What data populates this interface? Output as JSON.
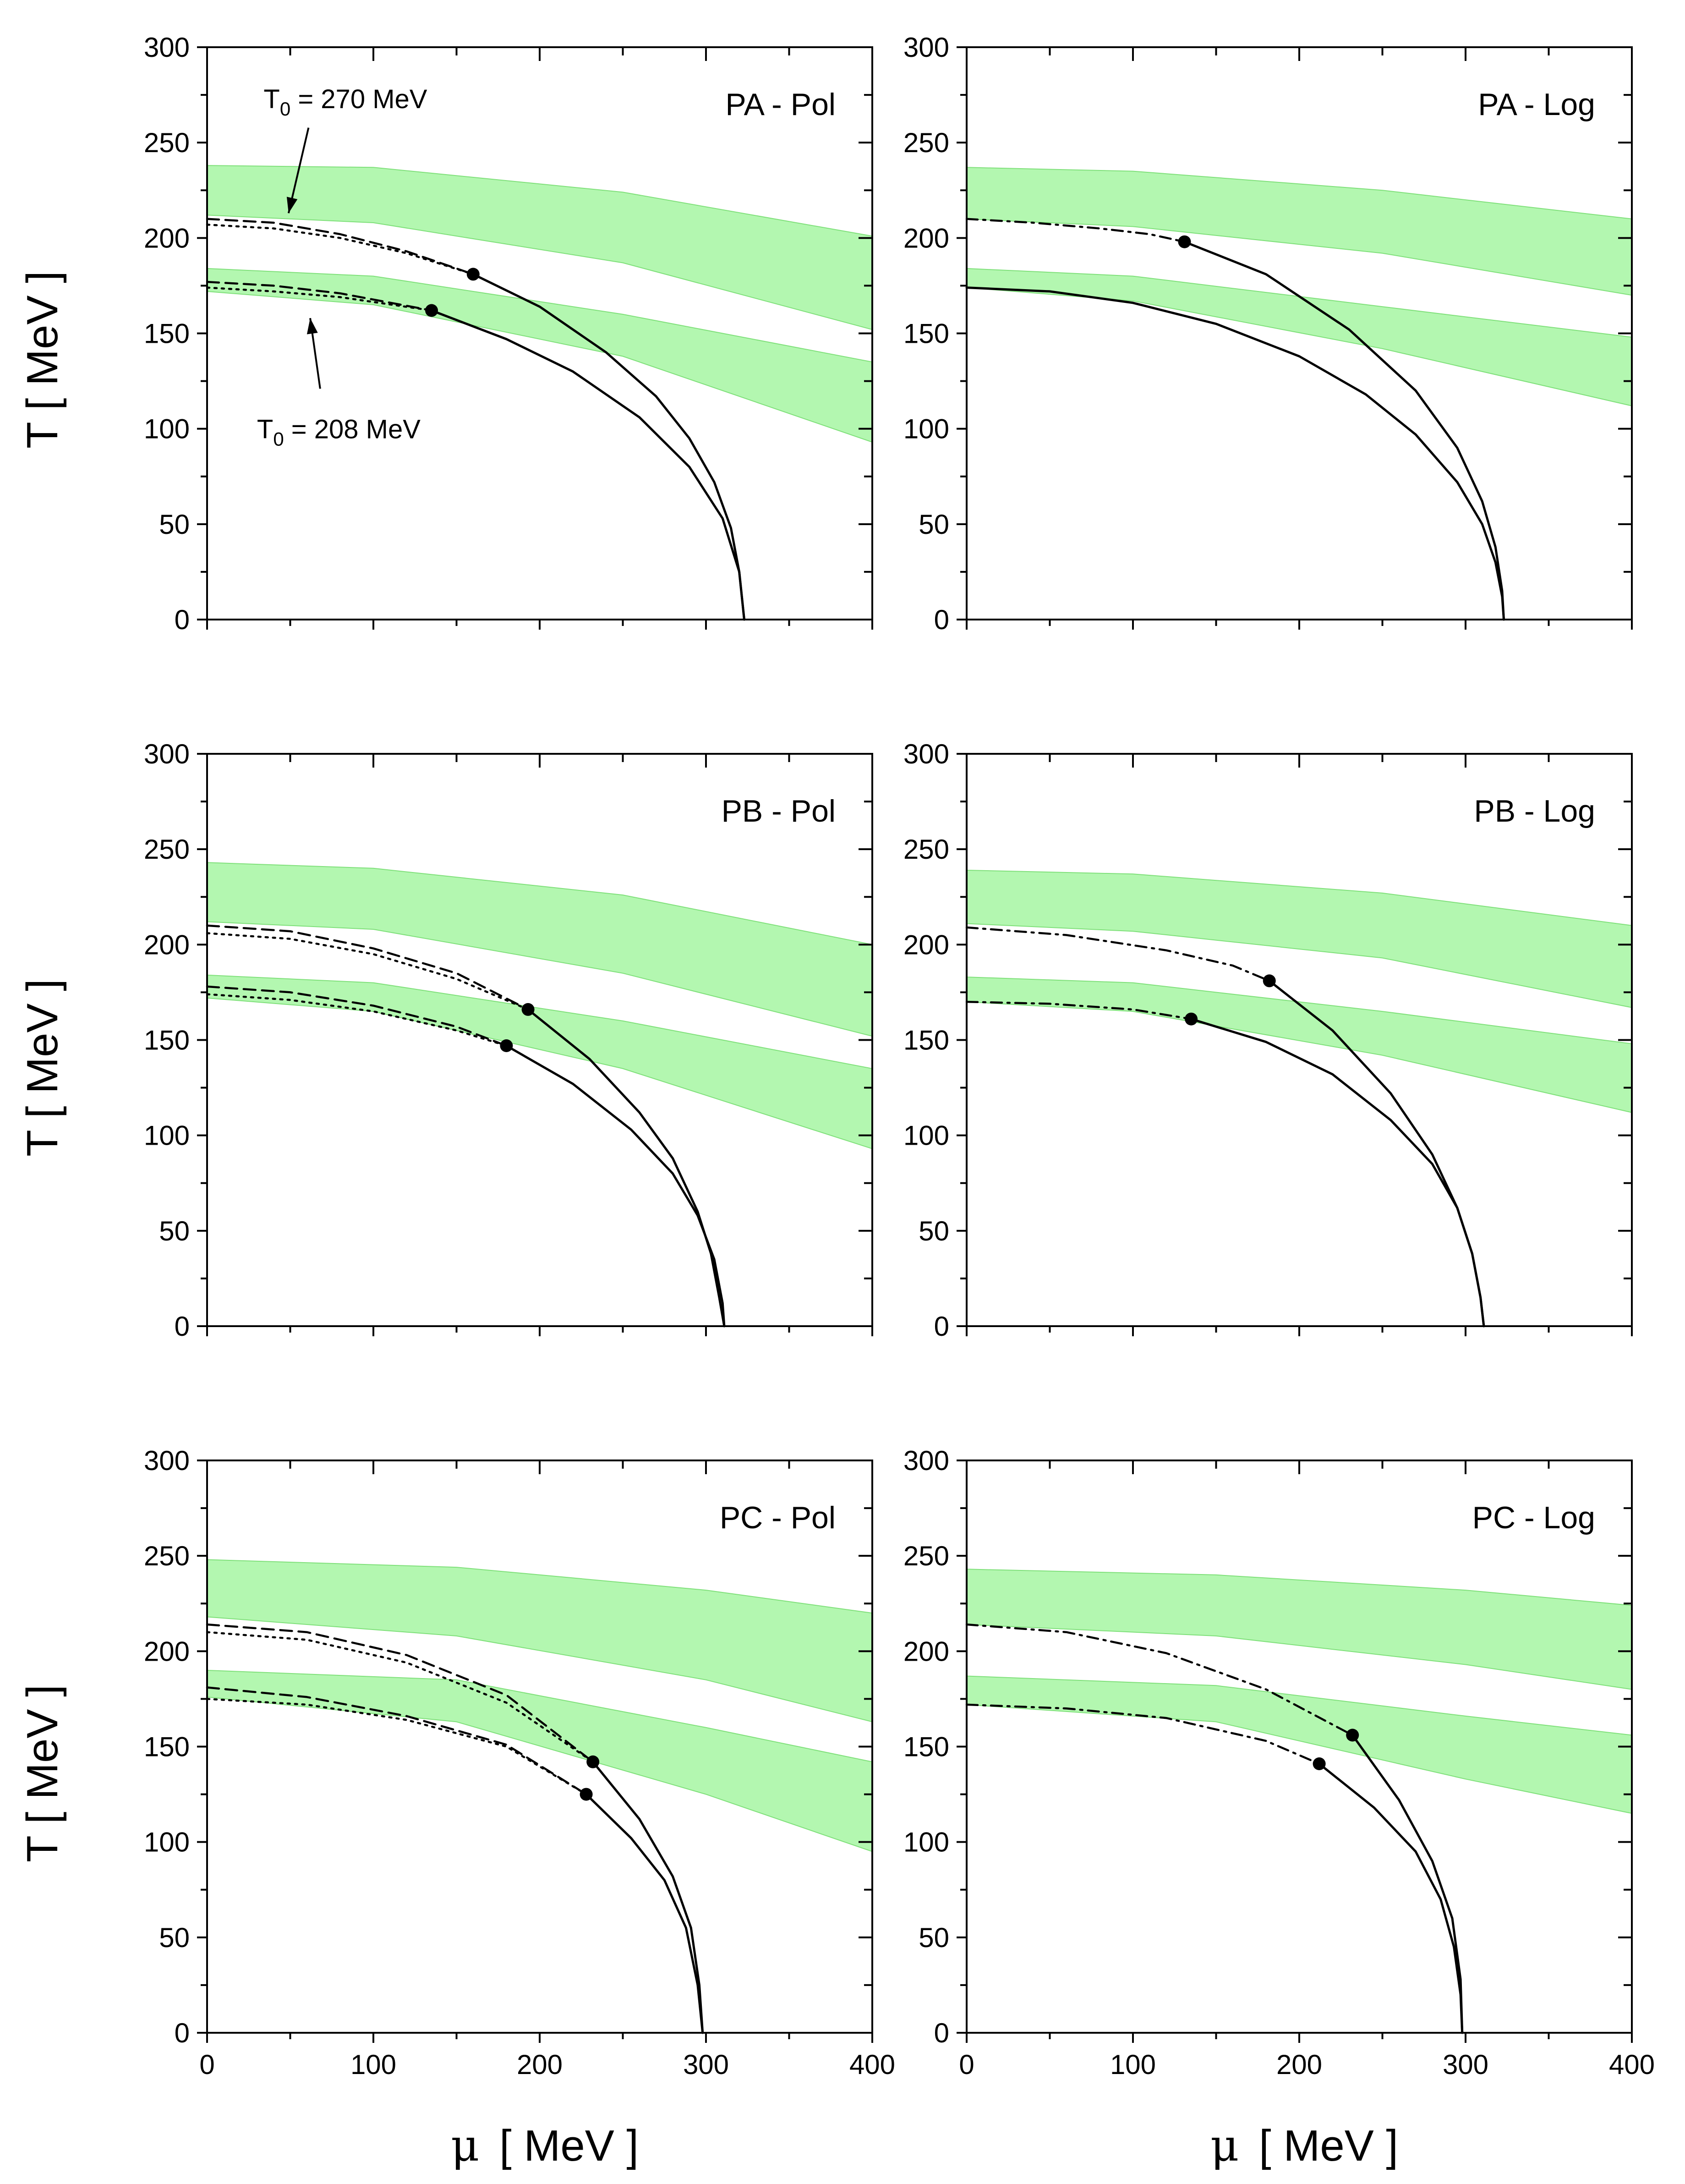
{
  "figure": {
    "y_axis_title": "T  [ MeV ]",
    "x_axis_title_symbol": "μ",
    "x_axis_title_unit": "[ MeV ]"
  },
  "chart_data": [
    {
      "type": "line",
      "title": "PA - Pol",
      "xlabel": "μ  [ MeV ]",
      "ylabel": "T  [ MeV ]",
      "xlim": [
        0,
        400
      ],
      "ylim": [
        0,
        300
      ],
      "x_ticks": [
        0,
        100,
        200,
        300,
        400
      ],
      "y_ticks": [
        0,
        50,
        100,
        150,
        200,
        250,
        300
      ],
      "bands": [
        {
          "name": "upper band",
          "color": "#b3f7b0",
          "x": [
            0,
            100,
            250,
            400
          ],
          "lower": [
            212,
            208,
            187,
            152
          ],
          "upper": [
            238,
            237,
            224,
            201
          ]
        },
        {
          "name": "lower band",
          "color": "#b3f7b0",
          "x": [
            0,
            100,
            250,
            400
          ],
          "lower": [
            172,
            165,
            138,
            93
          ],
          "upper": [
            184,
            180,
            160,
            135
          ]
        }
      ],
      "series": [
        {
          "name": "T0 = 270 MeV dotted",
          "style": "dotted",
          "x": [
            0,
            40,
            80,
            120,
            160
          ],
          "y": [
            207,
            205,
            200,
            192,
            181
          ]
        },
        {
          "name": "T0 = 270 MeV dashed",
          "style": "dashed",
          "x": [
            0,
            40,
            80,
            120,
            160
          ],
          "y": [
            210,
            208,
            202,
            193,
            181
          ]
        },
        {
          "name": "T0 = 270 MeV first-order",
          "style": "solid",
          "x": [
            160,
            200,
            240,
            270,
            290,
            305,
            315,
            320,
            323
          ],
          "y": [
            181,
            164,
            140,
            117,
            95,
            72,
            48,
            25,
            0
          ]
        },
        {
          "name": "T0 = 208 MeV dotted",
          "style": "dotted",
          "x": [
            0,
            40,
            80,
            135
          ],
          "y": [
            174,
            172,
            169,
            162
          ]
        },
        {
          "name": "T0 = 208 MeV dashed",
          "style": "dashed",
          "x": [
            0,
            40,
            80,
            135
          ],
          "y": [
            177,
            175,
            171,
            162
          ]
        },
        {
          "name": "T0 = 208 MeV first-order",
          "style": "solid",
          "x": [
            135,
            180,
            220,
            260,
            290,
            310,
            320,
            323
          ],
          "y": [
            162,
            147,
            130,
            106,
            80,
            53,
            25,
            0
          ]
        }
      ],
      "points": [
        {
          "x": 160,
          "y": 181
        },
        {
          "x": 135,
          "y": 162
        }
      ],
      "annotations": [
        {
          "base": "T",
          "sub": "0",
          "rest": " = 270 MeV"
        },
        {
          "base": "T",
          "sub": "0",
          "rest": " = 208 MeV"
        }
      ]
    },
    {
      "type": "line",
      "title": "PA - Log",
      "xlabel": "μ  [ MeV ]",
      "ylabel": "T  [ MeV ]",
      "xlim": [
        0,
        400
      ],
      "ylim": [
        0,
        300
      ],
      "x_ticks": [
        0,
        100,
        200,
        300,
        400
      ],
      "y_ticks": [
        0,
        50,
        100,
        150,
        200,
        250,
        300
      ],
      "bands": [
        {
          "name": "upper band",
          "color": "#b3f7b0",
          "x": [
            0,
            100,
            250,
            400
          ],
          "lower": [
            210,
            206,
            192,
            170
          ],
          "upper": [
            237,
            235,
            225,
            210
          ]
        },
        {
          "name": "lower band",
          "color": "#b3f7b0",
          "x": [
            0,
            100,
            250,
            400
          ],
          "lower": [
            174,
            167,
            142,
            112
          ],
          "upper": [
            184,
            180,
            164,
            148
          ]
        }
      ],
      "series": [
        {
          "name": "T0 = 270 MeV dash-dot",
          "style": "dashdot",
          "x": [
            0,
            40,
            80,
            110,
            131
          ],
          "y": [
            210,
            208,
            205,
            202,
            198
          ]
        },
        {
          "name": "T0 = 270 MeV first-order",
          "style": "solid",
          "x": [
            131,
            180,
            230,
            270,
            295,
            310,
            318,
            322,
            323
          ],
          "y": [
            198,
            181,
            152,
            120,
            90,
            62,
            38,
            15,
            0
          ]
        },
        {
          "name": "T0 = 208 MeV crossover",
          "style": "solid",
          "x": [
            0,
            50,
            100,
            150,
            200,
            240,
            270,
            295,
            310,
            318,
            322,
            323
          ],
          "y": [
            174,
            172,
            166,
            155,
            138,
            118,
            97,
            72,
            50,
            30,
            12,
            0
          ]
        }
      ],
      "points": [
        {
          "x": 131,
          "y": 198
        }
      ],
      "annotations": []
    },
    {
      "type": "line",
      "title": "PB - Pol",
      "xlabel": "μ  [ MeV ]",
      "ylabel": "T  [ MeV ]",
      "xlim": [
        0,
        400
      ],
      "ylim": [
        0,
        300
      ],
      "x_ticks": [
        0,
        100,
        200,
        300,
        400
      ],
      "y_ticks": [
        0,
        50,
        100,
        150,
        200,
        250,
        300
      ],
      "bands": [
        {
          "name": "upper band",
          "color": "#b3f7b0",
          "x": [
            0,
            100,
            250,
            400
          ],
          "lower": [
            212,
            208,
            185,
            152
          ],
          "upper": [
            243,
            240,
            226,
            200
          ]
        },
        {
          "name": "lower band",
          "color": "#b3f7b0",
          "x": [
            0,
            100,
            250,
            400
          ],
          "lower": [
            172,
            165,
            135,
            93
          ],
          "upper": [
            184,
            180,
            160,
            135
          ]
        }
      ],
      "series": [
        {
          "name": "T0 = 270 MeV dotted",
          "style": "dotted",
          "x": [
            0,
            50,
            100,
            150,
            193
          ],
          "y": [
            206,
            203,
            195,
            182,
            166
          ]
        },
        {
          "name": "T0 = 270 MeV dashed",
          "style": "dashed",
          "x": [
            0,
            50,
            100,
            150,
            193
          ],
          "y": [
            210,
            207,
            198,
            185,
            166
          ]
        },
        {
          "name": "T0 = 270 MeV first-order",
          "style": "solid",
          "x": [
            193,
            230,
            260,
            280,
            295,
            303,
            308,
            311
          ],
          "y": [
            166,
            140,
            112,
            88,
            60,
            38,
            15,
            0
          ]
        },
        {
          "name": "T0 = 208 MeV dotted",
          "style": "dotted",
          "x": [
            0,
            50,
            100,
            150,
            180
          ],
          "y": [
            174,
            171,
            165,
            155,
            147
          ]
        },
        {
          "name": "T0 = 208 MeV dashed",
          "style": "dashed",
          "x": [
            0,
            50,
            100,
            150,
            180
          ],
          "y": [
            178,
            175,
            168,
            157,
            147
          ]
        },
        {
          "name": "T0 = 208 MeV first-order",
          "style": "solid",
          "x": [
            180,
            220,
            255,
            280,
            295,
            305,
            310,
            311
          ],
          "y": [
            147,
            127,
            103,
            80,
            58,
            35,
            12,
            0
          ]
        }
      ],
      "points": [
        {
          "x": 193,
          "y": 166
        },
        {
          "x": 180,
          "y": 147
        }
      ],
      "annotations": []
    },
    {
      "type": "line",
      "title": "PB - Log",
      "xlabel": "μ  [ MeV ]",
      "ylabel": "T  [ MeV ]",
      "xlim": [
        0,
        400
      ],
      "ylim": [
        0,
        300
      ],
      "x_ticks": [
        0,
        100,
        200,
        300,
        400
      ],
      "y_ticks": [
        0,
        50,
        100,
        150,
        200,
        250,
        300
      ],
      "bands": [
        {
          "name": "upper band",
          "color": "#b3f7b0",
          "x": [
            0,
            100,
            250,
            400
          ],
          "lower": [
            211,
            207,
            193,
            167
          ],
          "upper": [
            239,
            237,
            227,
            210
          ]
        },
        {
          "name": "lower band",
          "color": "#b3f7b0",
          "x": [
            0,
            100,
            250,
            400
          ],
          "lower": [
            170,
            165,
            142,
            112
          ],
          "upper": [
            183,
            180,
            165,
            148
          ]
        }
      ],
      "series": [
        {
          "name": "T0 = 270 MeV dash-dot",
          "style": "dashdot",
          "x": [
            0,
            60,
            120,
            160,
            182
          ],
          "y": [
            209,
            205,
            197,
            189,
            181
          ]
        },
        {
          "name": "T0 = 270 MeV first-order",
          "style": "solid",
          "x": [
            182,
            220,
            255,
            280,
            295,
            304,
            309,
            311
          ],
          "y": [
            181,
            155,
            122,
            90,
            62,
            38,
            15,
            0
          ]
        },
        {
          "name": "T0 = 208 MeV dash-dot",
          "style": "dashdot",
          "x": [
            0,
            50,
            100,
            135
          ],
          "y": [
            170,
            169,
            166,
            161
          ]
        },
        {
          "name": "T0 = 208 MeV first-order",
          "style": "solid",
          "x": [
            135,
            180,
            220,
            255,
            280,
            295,
            304,
            309,
            311
          ],
          "y": [
            161,
            149,
            132,
            108,
            85,
            62,
            38,
            15,
            0
          ]
        }
      ],
      "points": [
        {
          "x": 182,
          "y": 181
        },
        {
          "x": 135,
          "y": 161
        }
      ],
      "annotations": []
    },
    {
      "type": "line",
      "title": "PC - Pol",
      "xlabel": "μ  [ MeV ]",
      "ylabel": "T  [ MeV ]",
      "xlim": [
        0,
        400
      ],
      "ylim": [
        0,
        300
      ],
      "x_ticks": [
        0,
        100,
        200,
        300,
        400
      ],
      "y_ticks": [
        0,
        50,
        100,
        150,
        200,
        250,
        300
      ],
      "bands": [
        {
          "name": "upper band",
          "color": "#b3f7b0",
          "x": [
            0,
            150,
            300,
            400
          ],
          "lower": [
            218,
            208,
            185,
            163
          ],
          "upper": [
            248,
            244,
            232,
            220
          ]
        },
        {
          "name": "lower band",
          "color": "#b3f7b0",
          "x": [
            0,
            150,
            300,
            400
          ],
          "lower": [
            176,
            163,
            125,
            95
          ],
          "upper": [
            190,
            185,
            160,
            142
          ]
        }
      ],
      "series": [
        {
          "name": "T0 = 270 MeV dotted",
          "style": "dotted",
          "x": [
            0,
            60,
            120,
            180,
            232
          ],
          "y": [
            210,
            206,
            194,
            173,
            142
          ]
        },
        {
          "name": "T0 = 270 MeV dashed",
          "style": "dashed",
          "x": [
            0,
            60,
            120,
            180,
            232
          ],
          "y": [
            214,
            210,
            198,
            177,
            142
          ]
        },
        {
          "name": "T0 = 270 MeV first-order",
          "style": "solid",
          "x": [
            232,
            260,
            280,
            291,
            296,
            298
          ],
          "y": [
            142,
            112,
            82,
            55,
            25,
            0
          ]
        },
        {
          "name": "T0 = 208 MeV dotted",
          "style": "dotted",
          "x": [
            0,
            60,
            120,
            180,
            228
          ],
          "y": [
            175,
            172,
            164,
            150,
            125
          ]
        },
        {
          "name": "T0 = 208 MeV dashed",
          "style": "dashed",
          "x": [
            0,
            60,
            120,
            180,
            228
          ],
          "y": [
            181,
            176,
            166,
            151,
            125
          ]
        },
        {
          "name": "T0 = 208 MeV first-order",
          "style": "solid",
          "x": [
            228,
            255,
            275,
            288,
            295,
            298
          ],
          "y": [
            125,
            102,
            80,
            55,
            25,
            0
          ]
        }
      ],
      "points": [
        {
          "x": 232,
          "y": 142
        },
        {
          "x": 228,
          "y": 125
        }
      ],
      "annotations": []
    },
    {
      "type": "line",
      "title": "PC - Log",
      "xlabel": "μ  [ MeV ]",
      "ylabel": "T  [ MeV ]",
      "xlim": [
        0,
        400
      ],
      "ylim": [
        0,
        300
      ],
      "x_ticks": [
        0,
        100,
        200,
        300,
        400
      ],
      "y_ticks": [
        0,
        50,
        100,
        150,
        200,
        250,
        300
      ],
      "bands": [
        {
          "name": "upper band",
          "color": "#b3f7b0",
          "x": [
            0,
            150,
            300,
            400
          ],
          "lower": [
            214,
            208,
            193,
            180
          ],
          "upper": [
            243,
            240,
            232,
            224
          ]
        },
        {
          "name": "lower band",
          "color": "#b3f7b0",
          "x": [
            0,
            150,
            300,
            400
          ],
          "lower": [
            172,
            163,
            133,
            115
          ],
          "upper": [
            187,
            182,
            166,
            156
          ]
        }
      ],
      "series": [
        {
          "name": "T0 = 270 MeV dash-dot",
          "style": "dashdot",
          "x": [
            0,
            60,
            120,
            180,
            232
          ],
          "y": [
            214,
            210,
            199,
            180,
            156
          ]
        },
        {
          "name": "T0 = 270 MeV first-order",
          "style": "solid",
          "x": [
            232,
            260,
            280,
            292,
            297,
            298
          ],
          "y": [
            156,
            122,
            90,
            60,
            28,
            0
          ]
        },
        {
          "name": "T0 = 208 MeV dash-dot",
          "style": "dashdot",
          "x": [
            0,
            60,
            120,
            180,
            212
          ],
          "y": [
            172,
            170,
            165,
            153,
            141
          ]
        },
        {
          "name": "T0 = 208 MeV first-order",
          "style": "solid",
          "x": [
            212,
            245,
            270,
            285,
            293,
            297,
            298
          ],
          "y": [
            141,
            118,
            95,
            70,
            45,
            20,
            0
          ]
        }
      ],
      "points": [
        {
          "x": 232,
          "y": 156
        },
        {
          "x": 212,
          "y": 141
        }
      ],
      "annotations": []
    }
  ]
}
